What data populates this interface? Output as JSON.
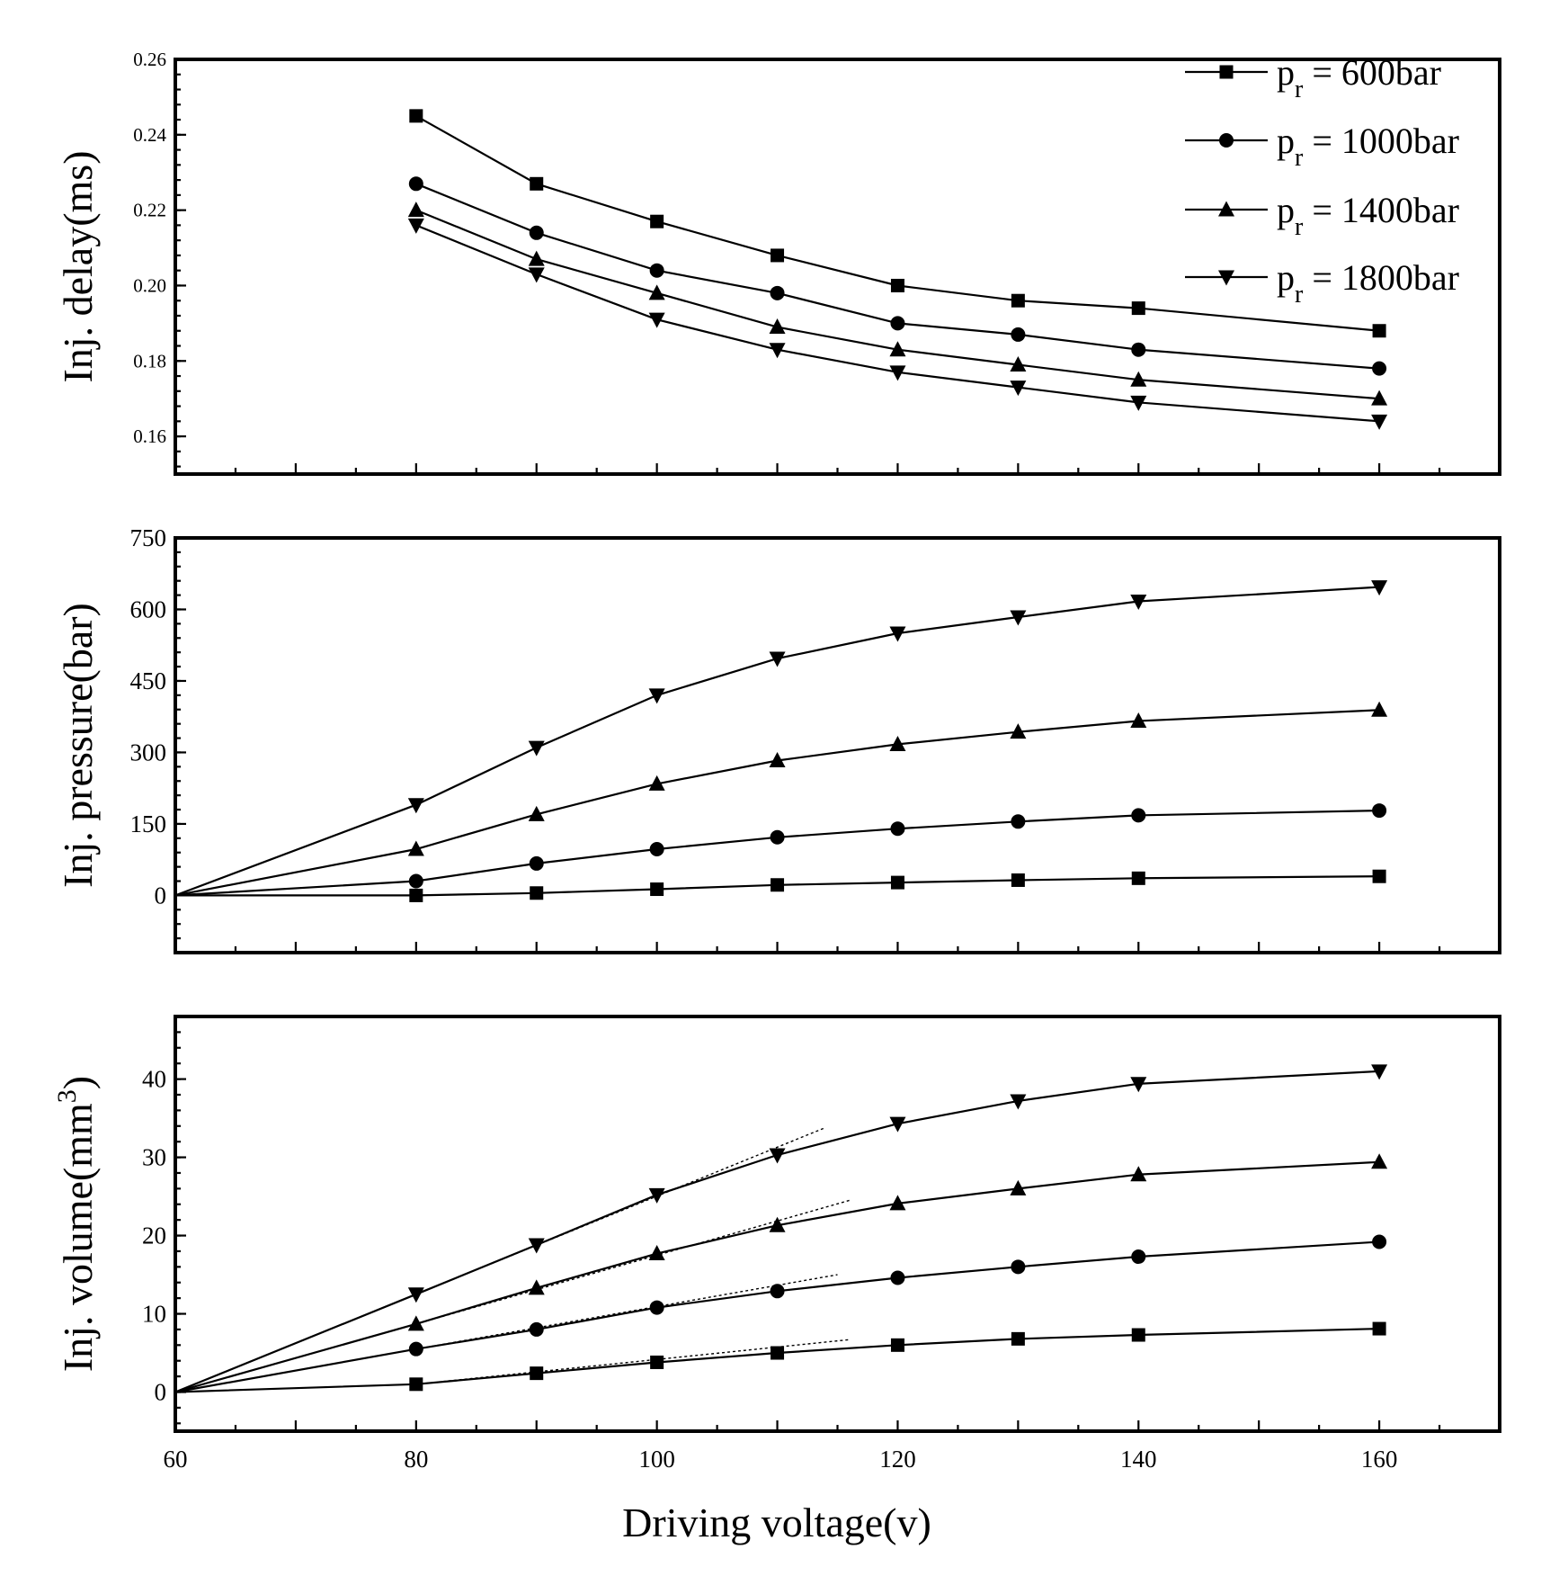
{
  "figure": {
    "xlabel": "Driving voltage(v)",
    "colors": {
      "line": "#000000",
      "background": "#ffffff"
    },
    "legend": {
      "position": "top-right",
      "entries": [
        {
          "p": "p",
          "sub": "r",
          "text": " = 600bar",
          "marker": "square"
        },
        {
          "p": "p",
          "sub": "r",
          "text": " =  1000bar",
          "marker": "circle"
        },
        {
          "p": "p",
          "sub": "r",
          "text": " =  1400bar",
          "marker": "triangle-up"
        },
        {
          "p": "p",
          "sub": "r",
          "text": " = 1800bar",
          "marker": "triangle-down"
        }
      ]
    }
  },
  "chart_data": [
    {
      "type": "line",
      "ylabel": "Inj. delay(ms)",
      "xlim": [
        60,
        170
      ],
      "ylim": [
        0.15,
        0.26
      ],
      "xticks": [
        60,
        80,
        100,
        120,
        140,
        160
      ],
      "xtick_labels": [],
      "yticks": [
        0.16,
        0.18,
        0.2,
        0.22,
        0.24,
        0.26
      ],
      "ytick_labels": [
        "0.16",
        "0.18",
        "0.20",
        "0.22",
        "0.24",
        "0.26"
      ],
      "x": [
        80,
        90,
        100,
        110,
        120,
        130,
        140,
        160
      ],
      "series": [
        {
          "name": "pr = 600bar",
          "marker": "square",
          "values": [
            0.245,
            0.227,
            0.217,
            0.208,
            0.2,
            0.196,
            0.194,
            0.188
          ]
        },
        {
          "name": "pr = 1000bar",
          "marker": "circle",
          "values": [
            0.227,
            0.214,
            0.204,
            0.198,
            0.19,
            0.187,
            0.183,
            0.178
          ]
        },
        {
          "name": "pr = 1400bar",
          "marker": "triangle-up",
          "values": [
            0.22,
            0.207,
            0.198,
            0.189,
            0.183,
            0.179,
            0.175,
            0.17
          ]
        },
        {
          "name": "pr = 1800bar",
          "marker": "triangle-down",
          "values": [
            0.216,
            0.203,
            0.191,
            0.183,
            0.177,
            0.173,
            0.169,
            0.164
          ]
        }
      ]
    },
    {
      "type": "line",
      "ylabel": "Inj. pressure(bar)",
      "xlim": [
        60,
        170
      ],
      "ylim": [
        -120,
        750
      ],
      "xticks": [
        60,
        80,
        100,
        120,
        140,
        160
      ],
      "xtick_labels": [],
      "yticks": [
        0,
        150,
        300,
        450,
        600,
        750
      ],
      "ytick_labels": [
        "0",
        "150",
        "300",
        "450",
        "600",
        "750"
      ],
      "x": [
        60,
        80,
        90,
        100,
        110,
        120,
        130,
        140,
        160
      ],
      "series": [
        {
          "name": "pr = 600bar",
          "marker": "square",
          "values": [
            0,
            0,
            5,
            13,
            22,
            27,
            32,
            36,
            40
          ]
        },
        {
          "name": "pr = 1000bar",
          "marker": "circle",
          "values": [
            0,
            30,
            67,
            97,
            122,
            140,
            155,
            168,
            178
          ]
        },
        {
          "name": "pr = 1400bar",
          "marker": "triangle-up",
          "values": [
            0,
            97,
            170,
            234,
            283,
            317,
            343,
            366,
            389
          ]
        },
        {
          "name": "pr = 1800bar",
          "marker": "triangle-down",
          "values": [
            0,
            190,
            310,
            420,
            497,
            550,
            584,
            617,
            647
          ]
        }
      ]
    },
    {
      "type": "line",
      "ylabel_main": "Inj. volume(mm",
      "ylabel_sup": "3",
      "ylabel_close": ")",
      "xlim": [
        60,
        170
      ],
      "ylim": [
        -5,
        48
      ],
      "xticks": [
        60,
        80,
        100,
        120,
        140,
        160
      ],
      "xtick_labels": [
        "60",
        "80",
        "100",
        "120",
        "140",
        "160"
      ],
      "yticks": [
        0,
        10,
        20,
        30,
        40
      ],
      "ytick_labels": [
        "0",
        "10",
        "20",
        "30",
        "40"
      ],
      "x": [
        60,
        80,
        90,
        100,
        110,
        120,
        130,
        140,
        160
      ],
      "series": [
        {
          "name": "pr = 600bar",
          "marker": "square",
          "values": [
            0,
            1.0,
            2.4,
            3.8,
            5.0,
            6.0,
            6.8,
            7.3,
            8.1
          ]
        },
        {
          "name": "pr = 1000bar",
          "marker": "circle",
          "values": [
            0,
            5.5,
            8.0,
            10.8,
            12.9,
            14.6,
            16.0,
            17.3,
            19.2
          ]
        },
        {
          "name": "pr = 1400bar",
          "marker": "triangle-up",
          "values": [
            0,
            8.7,
            13.3,
            17.7,
            21.3,
            24.1,
            26.0,
            27.8,
            29.4
          ]
        },
        {
          "name": "pr = 1800bar",
          "marker": "triangle-down",
          "values": [
            0,
            12.5,
            18.8,
            25.2,
            30.3,
            34.3,
            37.2,
            39.4,
            41.0
          ]
        }
      ],
      "guides": [
        {
          "x": [
            80,
            116
          ],
          "y": [
            1.0,
            6.7
          ]
        },
        {
          "x": [
            80,
            115
          ],
          "y": [
            5.5,
            15.0
          ]
        },
        {
          "x": [
            80,
            116
          ],
          "y": [
            8.7,
            24.5
          ]
        },
        {
          "x": [
            80,
            114
          ],
          "y": [
            12.5,
            33.8
          ]
        }
      ]
    }
  ]
}
